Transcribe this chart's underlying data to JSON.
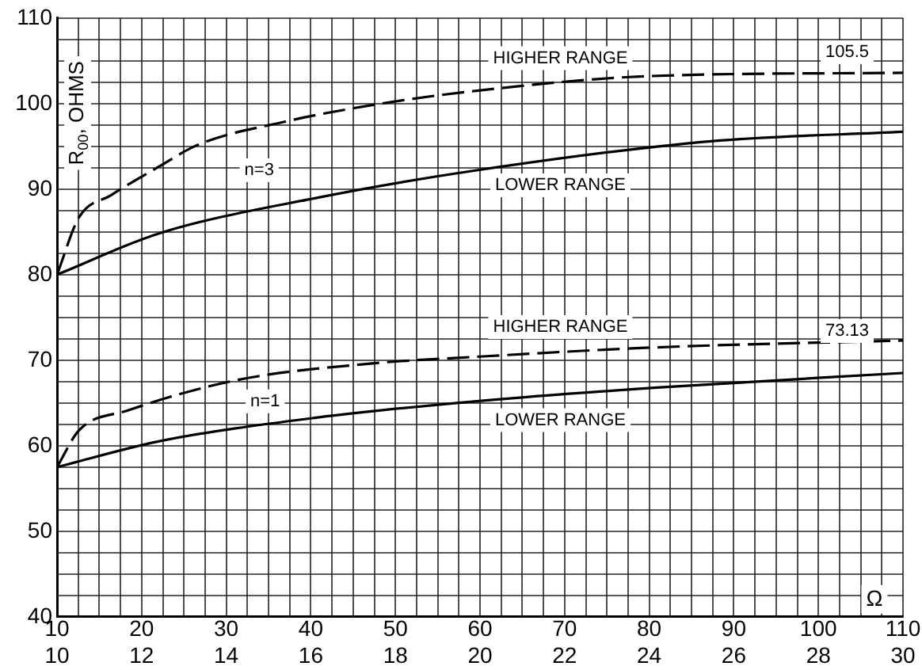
{
  "chart_data": {
    "type": "line",
    "ylabel": "R$_{00}$, OHMS",
    "xlabel": "Ω",
    "xlim": [
      10,
      110
    ],
    "ylim": [
      40,
      110
    ],
    "x2lim": [
      10,
      30
    ],
    "xticks": [
      10,
      {
        "value": 12.5,
        "label": null
      },
      {
        "value": 15,
        "label": null
      },
      {
        "value": 17.5,
        "label": null
      },
      20,
      {
        "value": 22.5,
        "label": null
      },
      {
        "value": 25,
        "label": null
      },
      {
        "value": 27.5,
        "label": null
      },
      30,
      {
        "value": 32.5,
        "label": null
      },
      {
        "value": 35,
        "label": null
      },
      {
        "value": 37.5,
        "label": null
      },
      40,
      {
        "value": 42.5,
        "label": null
      },
      {
        "value": 45,
        "label": null
      },
      {
        "value": 47.5,
        "label": null
      },
      50,
      {
        "value": 52.5,
        "label": null
      },
      {
        "value": 55,
        "label": null
      },
      {
        "value": 57.5,
        "label": null
      },
      60,
      {
        "value": 62.5,
        "label": null
      },
      {
        "value": 65,
        "label": null
      },
      {
        "value": 67.5,
        "label": null
      },
      70,
      {
        "value": 72.5,
        "label": null
      },
      {
        "value": 75,
        "label": null
      },
      {
        "value": 77.5,
        "label": null
      },
      80,
      {
        "value": 82.5,
        "label": null
      },
      {
        "value": 85,
        "label": null
      },
      {
        "value": 87.5,
        "label": null
      },
      90,
      {
        "value": 92.5,
        "label": null
      },
      {
        "value": 95,
        "label": null
      },
      {
        "value": 97.5,
        "label": null
      },
      100,
      {
        "value": 102.5,
        "label": null
      },
      {
        "value": 105,
        "label": null
      },
      {
        "value": 107.5,
        "label": null
      },
      110
    ],
    "yticks": [
      40,
      {
        "value": 42.5,
        "label": null
      },
      {
        "value": 45,
        "label": null
      },
      {
        "value": 47.5,
        "label": null
      },
      50,
      {
        "value": 52.5,
        "label": null
      },
      {
        "value": 55,
        "label": null
      },
      {
        "value": 57.5,
        "label": null
      },
      60,
      {
        "value": 62.5,
        "label": null
      },
      {
        "value": 65,
        "label": null
      },
      {
        "value": 67.5,
        "label": null
      },
      70,
      {
        "value": 72.5,
        "label": null
      },
      {
        "value": 75,
        "label": null
      },
      {
        "value": 77.5,
        "label": null
      },
      80,
      {
        "value": 82.5,
        "label": null
      },
      {
        "value": 85,
        "label": null
      },
      {
        "value": 87.5,
        "label": null
      },
      90,
      {
        "value": 92.5,
        "label": null
      },
      {
        "value": 95,
        "label": null
      },
      {
        "value": 97.5,
        "label": null
      },
      100,
      {
        "value": 102.5,
        "label": null
      },
      {
        "value": 105,
        "label": null
      },
      {
        "value": 107.5,
        "label": null
      },
      110
    ],
    "x2ticks": [
      10,
      12,
      14,
      16,
      18,
      20,
      22,
      24,
      26,
      28,
      30
    ],
    "grid": true,
    "series": [
      {
        "name": "HIGHER RANGE",
        "color": "#000000",
        "line_style": "dashed",
        "x": [
          10,
          12.6,
          16.4,
          22,
          26.7,
          37,
          48.3,
          59.6,
          79.7,
          110
        ],
        "values": [
          80,
          86.7,
          89.3,
          92.6,
          95.2,
          97.9,
          100,
          101.5,
          103.2,
          103.6
        ]
      },
      {
        "name": "LOWER RANGE",
        "color": "#000000",
        "line_style": "solid",
        "x": [
          10,
          22,
          40.8,
          59.6,
          87.3,
          110
        ],
        "values": [
          80,
          84.8,
          89,
          92.2,
          95.6,
          96.7
        ]
      },
      {
        "name": "HIGHER RANGE",
        "color": "#000000",
        "line_style": "dashed",
        "x": [
          10,
          12.6,
          18.3,
          31.4,
          47,
          59.6,
          80.9,
          110
        ],
        "values": [
          57.5,
          61.8,
          64.1,
          67.7,
          69.6,
          70.4,
          71.5,
          72.3
        ]
      },
      {
        "name": "LOWER RANGE",
        "color": "#000000",
        "line_style": "solid",
        "x": [
          10,
          22,
          40.8,
          59.6,
          80.9,
          110
        ],
        "values": [
          57.5,
          60.5,
          63.3,
          65.2,
          66.8,
          68.5
        ]
      }
    ],
    "annotations": [
      {
        "text": "n=3",
        "x": 33.9,
        "y": 92.2
      },
      {
        "text": "n=1",
        "x": 34.6,
        "y": 65.2
      },
      {
        "text": "105.5",
        "x": 103.4,
        "y": 106
      },
      {
        "text": "73.13",
        "x": 103.4,
        "y": 73.4
      }
    ]
  }
}
